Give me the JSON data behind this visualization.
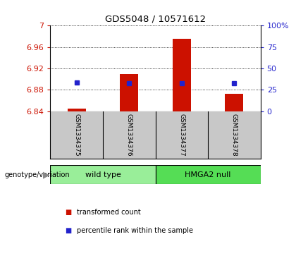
{
  "title": "GDS5048 / 10571612",
  "samples": [
    "GSM1334375",
    "GSM1334376",
    "GSM1334377",
    "GSM1334378"
  ],
  "bar_values": [
    6.845,
    6.91,
    6.975,
    6.872
  ],
  "percentile_values": [
    6.893,
    6.892,
    6.892,
    6.892
  ],
  "ymin": 6.84,
  "ymax": 7.0,
  "yticks": [
    6.84,
    6.88,
    6.92,
    6.96,
    7.0
  ],
  "ytick_labels": [
    "6.84",
    "6.88",
    "6.92",
    "6.96",
    "7"
  ],
  "right_yticks_pct": [
    0,
    25,
    50,
    75,
    100
  ],
  "right_ytick_labels": [
    "0",
    "25",
    "50",
    "75",
    "100%"
  ],
  "bar_color": "#CC1100",
  "dot_color": "#2222CC",
  "bar_width": 0.35,
  "genotype_label": "genotype/variation",
  "legend_items": [
    "transformed count",
    "percentile rank within the sample"
  ],
  "group_wildtype_label": "wild type",
  "group_hmga2_label": "HMGA2 null",
  "group_wildtype_color": "#99EE99",
  "group_hmga2_color": "#55DD55",
  "gray_bg": "#C8C8C8",
  "plot_bg": "#ffffff",
  "background_color": "#ffffff"
}
